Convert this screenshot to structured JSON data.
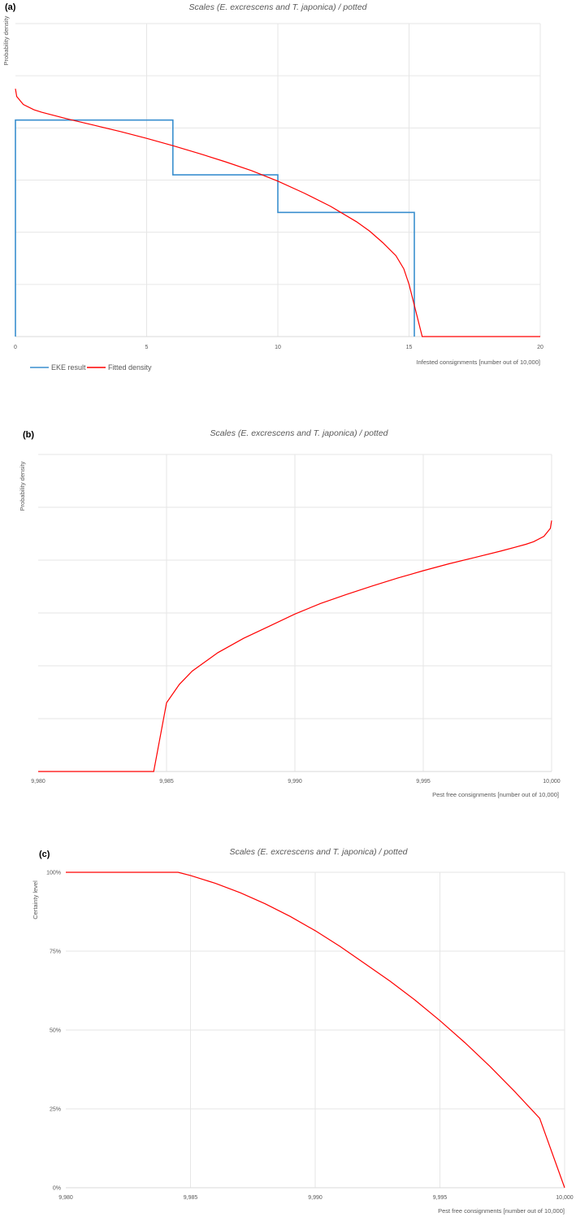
{
  "colors": {
    "eke": "#3a8fcf",
    "fitted": "#ff0000",
    "grid": "#e6e6e6",
    "text": "#595959"
  },
  "chart_data": [
    {
      "panel": "(a)",
      "type": "line",
      "title": "Scales (E. excrescens and T. japonica) / potted",
      "xlabel": "Infested consignments [number out of 10,000]",
      "ylabel": "Probability density",
      "xlim": [
        0,
        20
      ],
      "ylim": [
        0,
        6
      ],
      "xticks": [
        "0",
        "5",
        "10",
        "15",
        "20"
      ],
      "grid": true,
      "legend_position": "bottom-left",
      "series": [
        {
          "name": "EKE result",
          "kind": "step",
          "x": [
            0,
            0,
            6,
            6,
            10,
            10,
            15.2,
            15.2
          ],
          "y": [
            0,
            4.15,
            4.15,
            3.1,
            3.1,
            2.38,
            2.38,
            0
          ]
        },
        {
          "name": "Fitted density",
          "kind": "line",
          "x": [
            0,
            0.05,
            0.3,
            0.7,
            1,
            2,
            3,
            4,
            5,
            6,
            7,
            8,
            9,
            10,
            11,
            12,
            13,
            13.5,
            14,
            14.5,
            14.8,
            15,
            15.5,
            20
          ],
          "y": [
            4.75,
            4.6,
            4.45,
            4.35,
            4.3,
            4.17,
            4.05,
            3.93,
            3.8,
            3.66,
            3.51,
            3.35,
            3.18,
            2.98,
            2.75,
            2.5,
            2.2,
            2.02,
            1.8,
            1.55,
            1.3,
            1.0,
            0,
            0
          ]
        }
      ]
    },
    {
      "panel": "(b)",
      "type": "line",
      "title": "Scales (E. excrescens and T. japonica) / potted",
      "xlabel": "Pest free consignments [number out of 10,000]",
      "ylabel": "Probability density",
      "xlim": [
        9980,
        10000
      ],
      "ylim": [
        0,
        6
      ],
      "xticks": [
        "9,980",
        "9,985",
        "9,990",
        "9,995",
        "10,000"
      ],
      "grid": true,
      "series": [
        {
          "kind": "line",
          "x": [
            9980,
            9984.5,
            9985,
            9985.5,
            9986,
            9987,
            9988,
            9989,
            9990,
            9991,
            9992,
            9993,
            9994,
            9995,
            9996,
            9997,
            9998,
            9999,
            9999.3,
            9999.7,
            9999.95,
            10000
          ],
          "y": [
            0,
            0,
            1.3,
            1.65,
            1.9,
            2.25,
            2.52,
            2.75,
            2.98,
            3.18,
            3.35,
            3.51,
            3.66,
            3.8,
            3.93,
            4.05,
            4.17,
            4.3,
            4.35,
            4.45,
            4.6,
            4.75
          ]
        }
      ]
    },
    {
      "panel": "(c)",
      "type": "line",
      "title": "Scales (E. excrescens and T. japonica) / potted",
      "xlabel": "Pest free consignments [number out of 10,000]",
      "ylabel": "Certainty level",
      "xlim": [
        9980,
        10000
      ],
      "ylim": [
        0,
        1
      ],
      "xticks": [
        "9,980",
        "9,985",
        "9,990",
        "9,995",
        "10,000"
      ],
      "yticks": [
        "0%",
        "25%",
        "50%",
        "75%",
        "100%"
      ],
      "grid": true,
      "series": [
        {
          "kind": "line",
          "x": [
            9980,
            9984.5,
            9985,
            9986,
            9987,
            9988,
            9989,
            9990,
            9991,
            9992,
            9993,
            9994,
            9995,
            9996,
            9997,
            9998,
            9999,
            10000
          ],
          "y": [
            1.0,
            1.0,
            0.99,
            0.965,
            0.935,
            0.9,
            0.86,
            0.815,
            0.765,
            0.71,
            0.655,
            0.595,
            0.53,
            0.46,
            0.385,
            0.305,
            0.22,
            0.0
          ]
        }
      ]
    }
  ]
}
